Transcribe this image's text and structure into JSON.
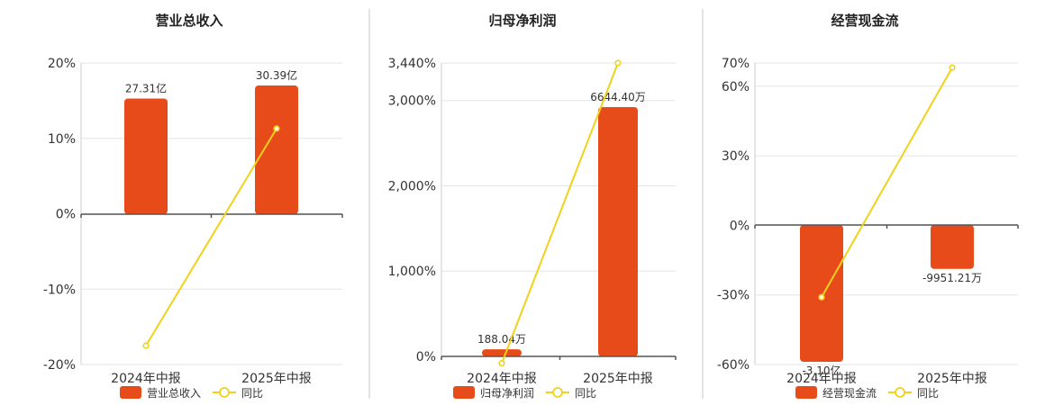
{
  "colors": {
    "bar": "#e84b1a",
    "line": "#f0d21a"
  },
  "legend_yoy": "同比",
  "chart_data": [
    {
      "type": "bar",
      "title": "营业总收入",
      "legend_bar": "营业总收入",
      "categories": [
        "2024年中报",
        "2025年中报"
      ],
      "bar_values": [
        27.31,
        30.39
      ],
      "bar_labels": [
        "27.31亿",
        "30.39亿"
      ],
      "yoy_values": [
        -17.5,
        11.3
      ],
      "yoy_ticks": [
        20,
        10,
        0,
        -10,
        -20
      ],
      "tick_labels": [
        "20%",
        "10%",
        "0%",
        "-10%",
        "-20%"
      ],
      "ylim": [
        -20,
        20
      ]
    },
    {
      "type": "bar",
      "title": "归母净利润",
      "legend_bar": "归母净利润",
      "categories": [
        "2024年中报",
        "2025年中报"
      ],
      "bar_values": [
        188.04,
        6644.4
      ],
      "bar_labels": [
        "188.04万",
        "6644.40万"
      ],
      "yoy_values": [
        -80,
        3440
      ],
      "yoy_ticks": [
        3440,
        3000,
        2000,
        1000,
        0
      ],
      "tick_labels": [
        "3,440%",
        "3,000%",
        "2,000%",
        "1,000%",
        "0%"
      ],
      "ylim": [
        0,
        3440
      ]
    },
    {
      "type": "bar",
      "title": "经营现金流",
      "legend_bar": "经营现金流",
      "categories": [
        "2024年中报",
        "2025年中报"
      ],
      "bar_values": [
        -3.1,
        -0.995121
      ],
      "bar_labels": [
        "-3.10亿",
        "-9951.21万"
      ],
      "yoy_values": [
        -31,
        68
      ],
      "yoy_ticks": [
        70,
        60,
        30,
        0,
        -30,
        -60
      ],
      "tick_labels": [
        "70%",
        "60%",
        "30%",
        "0%",
        "-30%",
        "-60%"
      ],
      "ylim": [
        -60,
        70
      ]
    }
  ]
}
